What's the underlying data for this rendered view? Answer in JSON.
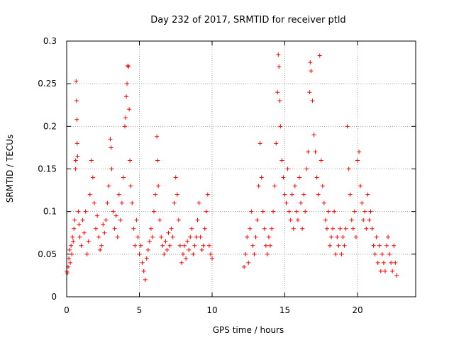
{
  "chart_data": {
    "type": "scatter",
    "title": "Day 232 of 2017, SRMTID for receiver ptld",
    "xlabel": "GPS time / hours",
    "ylabel": "SRMTID / TECUs",
    "xlim": [
      0,
      24
    ],
    "ylim": [
      0,
      0.3
    ],
    "xticks": [
      0,
      5,
      10,
      15,
      20
    ],
    "xtick_labels": [
      "0",
      "5",
      "10",
      "15",
      "20"
    ],
    "yticks": [
      0,
      0.05,
      0.1,
      0.15,
      0.2,
      0.25,
      0.3
    ],
    "ytick_labels": [
      "0",
      "0.05",
      "0.1",
      "0.15",
      "0.2",
      "0.25",
      "0.3"
    ],
    "grid": true,
    "marker": "+",
    "series": [
      {
        "name": "SRMTID",
        "color": "#ff0000",
        "points": [
          [
            0.0,
            0.03
          ],
          [
            0.05,
            0.028
          ],
          [
            0.1,
            0.035
          ],
          [
            0.15,
            0.045
          ],
          [
            0.2,
            0.055
          ],
          [
            0.25,
            0.04
          ],
          [
            0.3,
            0.06
          ],
          [
            0.35,
            0.05
          ],
          [
            0.4,
            0.07
          ],
          [
            0.45,
            0.065
          ],
          [
            0.5,
            0.08
          ],
          [
            0.55,
            0.09
          ],
          [
            0.6,
            0.15
          ],
          [
            0.62,
            0.16
          ],
          [
            0.65,
            0.253
          ],
          [
            0.68,
            0.23
          ],
          [
            0.7,
            0.208
          ],
          [
            0.72,
            0.18
          ],
          [
            0.75,
            0.165
          ],
          [
            0.8,
            0.1
          ],
          [
            0.85,
            0.085
          ],
          [
            0.9,
            0.07
          ],
          [
            1.0,
            0.06
          ],
          [
            1.1,
            0.09
          ],
          [
            1.2,
            0.075
          ],
          [
            1.3,
            0.1
          ],
          [
            1.4,
            0.05
          ],
          [
            1.5,
            0.065
          ],
          [
            1.6,
            0.12
          ],
          [
            1.7,
            0.16
          ],
          [
            1.8,
            0.14
          ],
          [
            1.9,
            0.11
          ],
          [
            2.0,
            0.08
          ],
          [
            2.1,
            0.095
          ],
          [
            2.2,
            0.07
          ],
          [
            2.3,
            0.055
          ],
          [
            2.4,
            0.06
          ],
          [
            2.5,
            0.085
          ],
          [
            2.6,
            0.075
          ],
          [
            2.7,
            0.09
          ],
          [
            2.8,
            0.11
          ],
          [
            2.9,
            0.13
          ],
          [
            3.0,
            0.185
          ],
          [
            3.05,
            0.175
          ],
          [
            3.1,
            0.15
          ],
          [
            3.2,
            0.1
          ],
          [
            3.3,
            0.08
          ],
          [
            3.4,
            0.095
          ],
          [
            3.5,
            0.07
          ],
          [
            3.6,
            0.12
          ],
          [
            3.7,
            0.09
          ],
          [
            3.8,
            0.11
          ],
          [
            3.9,
            0.14
          ],
          [
            4.0,
            0.2
          ],
          [
            4.05,
            0.21
          ],
          [
            4.1,
            0.235
          ],
          [
            4.15,
            0.25
          ],
          [
            4.2,
            0.271
          ],
          [
            4.25,
            0.27
          ],
          [
            4.3,
            0.22
          ],
          [
            4.35,
            0.16
          ],
          [
            4.4,
            0.13
          ],
          [
            4.5,
            0.11
          ],
          [
            4.6,
            0.08
          ],
          [
            4.7,
            0.06
          ],
          [
            4.8,
            0.09
          ],
          [
            4.9,
            0.07
          ],
          [
            5.0,
            0.05
          ],
          [
            5.1,
            0.06
          ],
          [
            5.2,
            0.04
          ],
          [
            5.3,
            0.03
          ],
          [
            5.4,
            0.02
          ],
          [
            5.5,
            0.045
          ],
          [
            5.6,
            0.055
          ],
          [
            5.7,
            0.065
          ],
          [
            5.8,
            0.08
          ],
          [
            5.9,
            0.07
          ],
          [
            6.0,
            0.1
          ],
          [
            6.1,
            0.12
          ],
          [
            6.2,
            0.188
          ],
          [
            6.25,
            0.16
          ],
          [
            6.3,
            0.13
          ],
          [
            6.4,
            0.09
          ],
          [
            6.5,
            0.07
          ],
          [
            6.6,
            0.06
          ],
          [
            6.7,
            0.05
          ],
          [
            6.8,
            0.065
          ],
          [
            6.9,
            0.055
          ],
          [
            7.0,
            0.075
          ],
          [
            7.1,
            0.06
          ],
          [
            7.2,
            0.08
          ],
          [
            7.3,
            0.07
          ],
          [
            7.4,
            0.11
          ],
          [
            7.5,
            0.14
          ],
          [
            7.6,
            0.12
          ],
          [
            7.7,
            0.09
          ],
          [
            7.8,
            0.06
          ],
          [
            7.9,
            0.04
          ],
          [
            8.0,
            0.05
          ],
          [
            8.1,
            0.06
          ],
          [
            8.2,
            0.045
          ],
          [
            8.3,
            0.065
          ],
          [
            8.4,
            0.055
          ],
          [
            8.5,
            0.07
          ],
          [
            8.6,
            0.08
          ],
          [
            8.7,
            0.05
          ],
          [
            8.8,
            0.06
          ],
          [
            8.9,
            0.07
          ],
          [
            9.0,
            0.09
          ],
          [
            9.1,
            0.11
          ],
          [
            9.2,
            0.07
          ],
          [
            9.3,
            0.055
          ],
          [
            9.4,
            0.06
          ],
          [
            9.5,
            0.08
          ],
          [
            9.6,
            0.1
          ],
          [
            9.7,
            0.12
          ],
          [
            9.8,
            0.06
          ],
          [
            9.9,
            0.05
          ],
          [
            10.0,
            0.045
          ],
          [
            12.2,
            0.035
          ],
          [
            12.3,
            0.05
          ],
          [
            12.4,
            0.07
          ],
          [
            12.5,
            0.04
          ],
          [
            12.6,
            0.08
          ],
          [
            12.7,
            0.1
          ],
          [
            12.8,
            0.06
          ],
          [
            12.9,
            0.05
          ],
          [
            13.0,
            0.07
          ],
          [
            13.1,
            0.09
          ],
          [
            13.2,
            0.13
          ],
          [
            13.3,
            0.18
          ],
          [
            13.4,
            0.14
          ],
          [
            13.5,
            0.1
          ],
          [
            13.6,
            0.08
          ],
          [
            13.7,
            0.06
          ],
          [
            13.8,
            0.05
          ],
          [
            13.9,
            0.07
          ],
          [
            14.0,
            0.06
          ],
          [
            14.1,
            0.08
          ],
          [
            14.2,
            0.1
          ],
          [
            14.3,
            0.13
          ],
          [
            14.4,
            0.18
          ],
          [
            14.5,
            0.24
          ],
          [
            14.55,
            0.284
          ],
          [
            14.6,
            0.27
          ],
          [
            14.65,
            0.23
          ],
          [
            14.7,
            0.2
          ],
          [
            14.8,
            0.16
          ],
          [
            14.9,
            0.14
          ],
          [
            15.0,
            0.12
          ],
          [
            15.1,
            0.11
          ],
          [
            15.2,
            0.15
          ],
          [
            15.3,
            0.1
          ],
          [
            15.4,
            0.09
          ],
          [
            15.5,
            0.12
          ],
          [
            15.6,
            0.08
          ],
          [
            15.7,
            0.13
          ],
          [
            15.8,
            0.1
          ],
          [
            15.9,
            0.09
          ],
          [
            16.0,
            0.14
          ],
          [
            16.1,
            0.11
          ],
          [
            16.2,
            0.08
          ],
          [
            16.3,
            0.12
          ],
          [
            16.4,
            0.1
          ],
          [
            16.5,
            0.15
          ],
          [
            16.6,
            0.17
          ],
          [
            16.7,
            0.24
          ],
          [
            16.75,
            0.275
          ],
          [
            16.8,
            0.265
          ],
          [
            16.9,
            0.23
          ],
          [
            17.0,
            0.19
          ],
          [
            17.1,
            0.17
          ],
          [
            17.2,
            0.14
          ],
          [
            17.3,
            0.12
          ],
          [
            17.4,
            0.283
          ],
          [
            17.5,
            0.16
          ],
          [
            17.6,
            0.13
          ],
          [
            17.7,
            0.11
          ],
          [
            17.8,
            0.09
          ],
          [
            17.9,
            0.08
          ],
          [
            18.0,
            0.1
          ],
          [
            18.1,
            0.06
          ],
          [
            18.2,
            0.07
          ],
          [
            18.3,
            0.08
          ],
          [
            18.4,
            0.1
          ],
          [
            18.5,
            0.05
          ],
          [
            18.6,
            0.07
          ],
          [
            18.7,
            0.06
          ],
          [
            18.8,
            0.08
          ],
          [
            18.9,
            0.05
          ],
          [
            19.0,
            0.07
          ],
          [
            19.1,
            0.06
          ],
          [
            19.2,
            0.08
          ],
          [
            19.3,
            0.2
          ],
          [
            19.4,
            0.15
          ],
          [
            19.5,
            0.12
          ],
          [
            19.6,
            0.09
          ],
          [
            19.7,
            0.08
          ],
          [
            19.8,
            0.1
          ],
          [
            19.9,
            0.07
          ],
          [
            20.0,
            0.16
          ],
          [
            20.1,
            0.17
          ],
          [
            20.2,
            0.13
          ],
          [
            20.3,
            0.11
          ],
          [
            20.4,
            0.09
          ],
          [
            20.5,
            0.1
          ],
          [
            20.6,
            0.08
          ],
          [
            20.7,
            0.12
          ],
          [
            20.8,
            0.09
          ],
          [
            20.9,
            0.1
          ],
          [
            21.0,
            0.08
          ],
          [
            21.1,
            0.06
          ],
          [
            21.2,
            0.05
          ],
          [
            21.3,
            0.07
          ],
          [
            21.4,
            0.04
          ],
          [
            21.5,
            0.06
          ],
          [
            21.6,
            0.03
          ],
          [
            21.7,
            0.05
          ],
          [
            21.8,
            0.04
          ],
          [
            21.9,
            0.03
          ],
          [
            22.0,
            0.06
          ],
          [
            22.1,
            0.07
          ],
          [
            22.2,
            0.05
          ],
          [
            22.3,
            0.04
          ],
          [
            22.4,
            0.03
          ],
          [
            22.5,
            0.06
          ],
          [
            22.6,
            0.04
          ],
          [
            22.7,
            0.025
          ]
        ]
      }
    ]
  }
}
